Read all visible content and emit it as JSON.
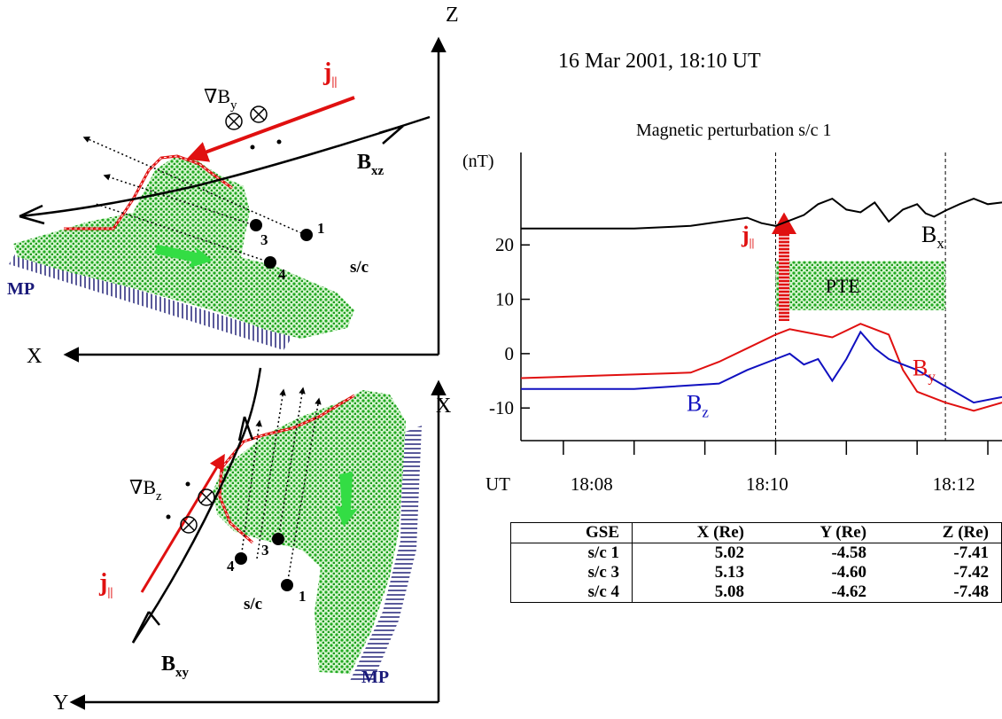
{
  "colors": {
    "current": "#e01010",
    "bz": "#1010c0",
    "plasma": "#22aa22",
    "plasma_light": "#d6f5d0",
    "mp_hatch": "#5a5a9a",
    "mp_label": "#1a1a7a"
  },
  "diagram_top": {
    "axis_z": "Z",
    "axis_x": "X",
    "j_label": "j",
    "j_sub": "||",
    "grad_label": "∇B",
    "grad_sub": "y",
    "b_label": "B",
    "b_sub": "xz",
    "sc_label": "s/c",
    "mp_label": "MP",
    "sc_numbers": [
      "1",
      "3",
      "4"
    ]
  },
  "diagram_bottom": {
    "axis_x": "X",
    "axis_y": "Y",
    "j_label": "j",
    "j_sub": "||",
    "grad_label": "∇B",
    "grad_sub": "z",
    "b_label": "B",
    "b_sub": "xy",
    "sc_label": "s/c",
    "mp_label": "MP",
    "sc_numbers": [
      "1",
      "3",
      "4"
    ]
  },
  "chart_data": {
    "type": "line",
    "title": "16 Mar 2001, 18:10 UT",
    "subtitle": "Magnetic perturbation s/c 1",
    "ylabel": "(nT)",
    "xlabel": "UT",
    "x_ticks": [
      "18:08",
      "18:10",
      "18:12"
    ],
    "y_ticks": [
      20,
      10,
      0,
      -10
    ],
    "ylim": [
      -16,
      37
    ],
    "xlim": [
      18.06,
      18.23
    ],
    "interval_markers": [
      18.15,
      18.21
    ],
    "pte_label": "PTE",
    "pte_band": [
      8,
      17
    ],
    "j_label": "j",
    "j_sub": "||",
    "series": [
      {
        "name": "B",
        "sub": "x",
        "color": "#000000",
        "x": [
          18.06,
          18.1,
          18.12,
          18.14,
          18.145,
          18.15,
          18.155,
          18.16,
          18.165,
          18.17,
          18.175,
          18.18,
          18.185,
          18.19,
          18.195,
          18.2,
          18.203,
          18.206,
          18.21,
          18.215,
          18.22,
          18.225,
          18.23
        ],
        "y": [
          23,
          23,
          23.5,
          25,
          24,
          23.5,
          24.5,
          25.5,
          27.5,
          28.5,
          26.5,
          26,
          27.8,
          24.3,
          26.5,
          27.5,
          25.8,
          25.2,
          26.3,
          27.5,
          28.5,
          27.5,
          27.8
        ]
      },
      {
        "name": "B",
        "sub": "y",
        "color": "#e01010",
        "x": [
          18.06,
          18.09,
          18.12,
          18.13,
          18.14,
          18.15,
          18.155,
          18.16,
          18.17,
          18.18,
          18.19,
          18.195,
          18.2,
          18.21,
          18.22,
          18.23
        ],
        "y": [
          -4.5,
          -4,
          -3.5,
          -1.5,
          1,
          3.5,
          4.5,
          4,
          3,
          5.5,
          3.5,
          -3,
          -7,
          -9,
          -10.5,
          -9
        ]
      },
      {
        "name": "B",
        "sub": "z",
        "color": "#1010c0",
        "x": [
          18.06,
          18.1,
          18.13,
          18.14,
          18.15,
          18.155,
          18.16,
          18.165,
          18.17,
          18.175,
          18.18,
          18.185,
          18.19,
          18.2,
          18.21,
          18.22,
          18.23
        ],
        "y": [
          -6.5,
          -6.5,
          -5.5,
          -3,
          -1,
          0,
          -2,
          -1,
          -5,
          -1,
          4,
          1,
          -1,
          -3,
          -6,
          -9,
          -8
        ]
      }
    ]
  },
  "table": {
    "headers": [
      "GSE",
      "X (Re)",
      "Y (Re)",
      "Z (Re)"
    ],
    "rows": [
      [
        "s/c 1",
        "5.02",
        "-4.58",
        "-7.41"
      ],
      [
        "s/c 3",
        "5.13",
        "-4.60",
        "-7.42"
      ],
      [
        "s/c 4",
        "5.08",
        "-4.62",
        "-7.48"
      ]
    ]
  }
}
